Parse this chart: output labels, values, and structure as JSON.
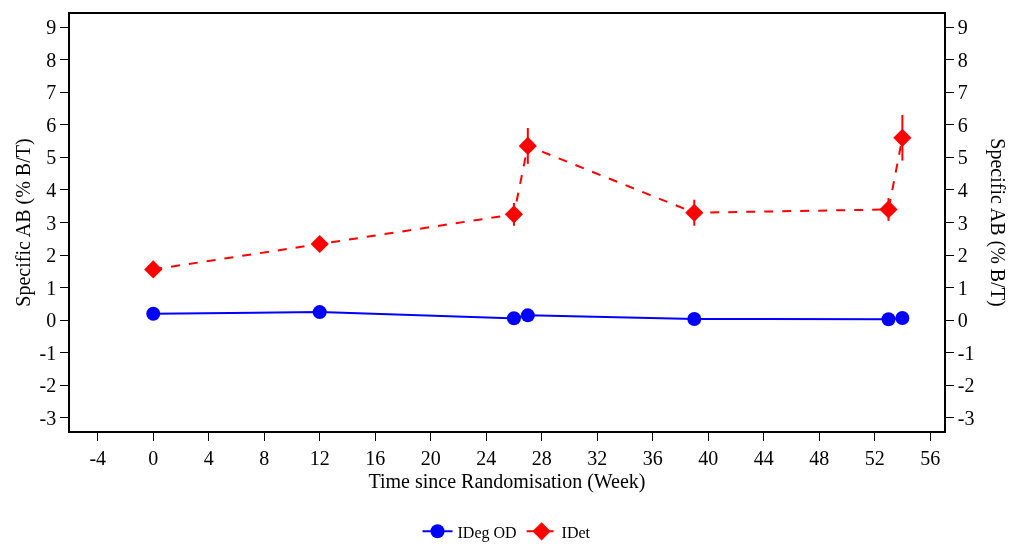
{
  "chart_data": {
    "type": "line",
    "xlabel": "Time since Randomisation (Week)",
    "ylabel": "Specific AB (% B/T)",
    "y2label": "Specific AB (% B/T)",
    "x": [
      0,
      12,
      26,
      27,
      39,
      53,
      54
    ],
    "series": [
      {
        "name": "IDeg OD",
        "color": "#0000ff",
        "marker": "circle",
        "line_style": "solid",
        "values": [
          0.2,
          0.25,
          0.06,
          0.15,
          0.04,
          0.03,
          0.07
        ]
      },
      {
        "name": "IDet",
        "color": "#ff0000",
        "marker": "diamond",
        "line_style": "dashed",
        "values": [
          1.56,
          2.34,
          3.25,
          5.35,
          3.3,
          3.4,
          5.6
        ],
        "errors": [
          null,
          0.15,
          0.35,
          0.55,
          0.4,
          0.35,
          0.7
        ]
      }
    ],
    "xlim": [
      -6,
      57
    ],
    "xticks": [
      -4,
      0,
      4,
      8,
      12,
      16,
      20,
      24,
      28,
      32,
      36,
      40,
      44,
      48,
      52,
      56
    ],
    "ylim": [
      -3.4,
      9.4
    ],
    "yticks": [
      -3,
      -2,
      -1,
      0,
      1,
      2,
      3,
      4,
      5,
      6,
      7,
      8,
      9
    ],
    "y2lim": [
      -3.4,
      9.4
    ],
    "y2ticks": [
      -3,
      -2,
      -1,
      0,
      1,
      2,
      3,
      4,
      5,
      6,
      7,
      8,
      9
    ],
    "grid": false,
    "legend": "bottom"
  }
}
